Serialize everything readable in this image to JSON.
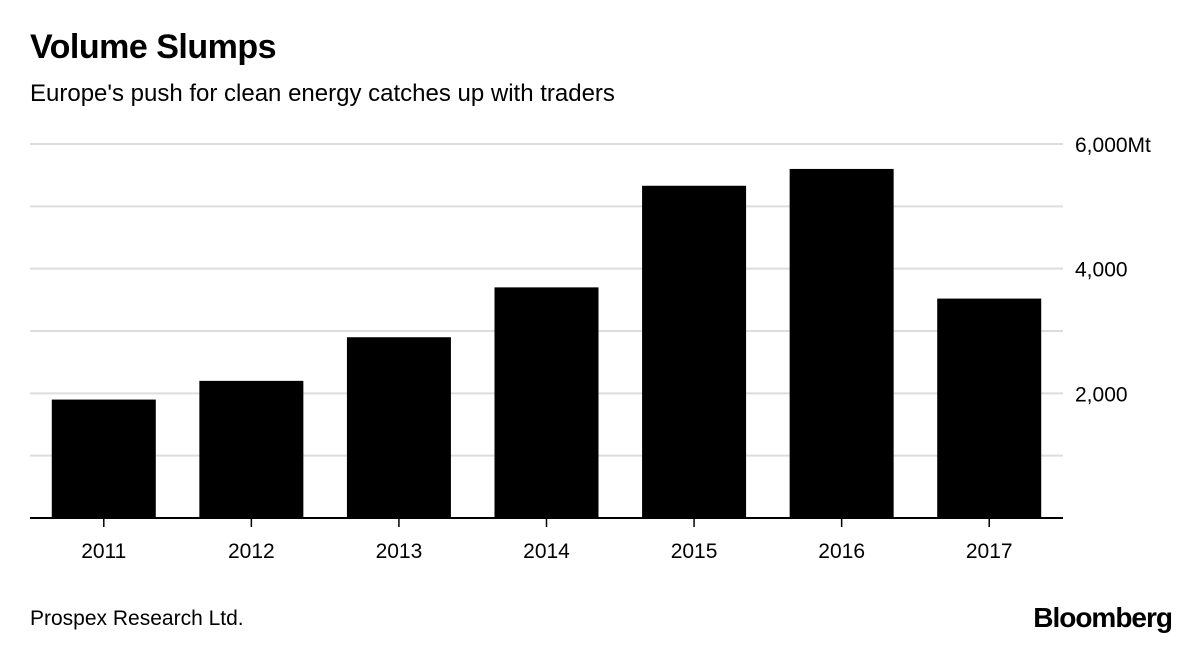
{
  "title": "Volume Slumps",
  "subtitle": "Europe's push for clean energy catches up with traders",
  "source": "Prospex Research Ltd.",
  "logo": "Bloomberg",
  "chart_data": {
    "type": "bar",
    "title": "Volume Slumps",
    "subtitle": "Europe's push for clean energy catches up with traders",
    "categories": [
      "2011",
      "2012",
      "2013",
      "2014",
      "2015",
      "2016",
      "2017"
    ],
    "values": [
      1900,
      2200,
      2900,
      3700,
      5330,
      5600,
      3520
    ],
    "ylim": [
      0,
      6000
    ],
    "yticks": [
      2000,
      4000,
      6000
    ],
    "ytick_labels": [
      "2,000",
      "4,000",
      "6,000Mt"
    ],
    "gridlines": [
      1000,
      2000,
      3000,
      4000,
      5000,
      6000
    ],
    "grid": true,
    "y_axis_side": "right",
    "bar_color": "#000000",
    "grid_color": "#dddddd"
  }
}
